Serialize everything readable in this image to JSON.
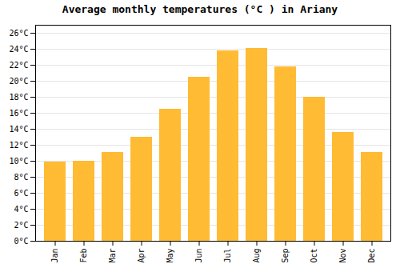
{
  "chart_data": {
    "type": "bar",
    "title": "Average monthly temperatures (°C ) in Ariany",
    "categories": [
      "Jan",
      "Feb",
      "Mar",
      "Apr",
      "May",
      "Jun",
      "Jul",
      "Aug",
      "Sep",
      "Oct",
      "Nov",
      "Dec"
    ],
    "values": [
      9.9,
      10.0,
      11.1,
      13.0,
      16.5,
      20.5,
      23.8,
      24.1,
      21.8,
      18.0,
      13.6,
      11.1
    ],
    "color": "#FFBB33",
    "ylim": [
      0,
      27
    ],
    "yticks": [
      {
        "value": 0,
        "label": "0°C"
      },
      {
        "value": 2,
        "label": "2°C"
      },
      {
        "value": 4,
        "label": "4°C"
      },
      {
        "value": 6,
        "label": "6°C"
      },
      {
        "value": 8,
        "label": "8°C"
      },
      {
        "value": 10,
        "label": "10°C"
      },
      {
        "value": 12,
        "label": "12°C"
      },
      {
        "value": 14,
        "label": "14°C"
      },
      {
        "value": 16,
        "label": "16°C"
      },
      {
        "value": 18,
        "label": "18°C"
      },
      {
        "value": 20,
        "label": "20°C"
      },
      {
        "value": 22,
        "label": "22°C"
      },
      {
        "value": 24,
        "label": "24°C"
      },
      {
        "value": 26,
        "label": "26°C"
      }
    ],
    "grid": true
  }
}
